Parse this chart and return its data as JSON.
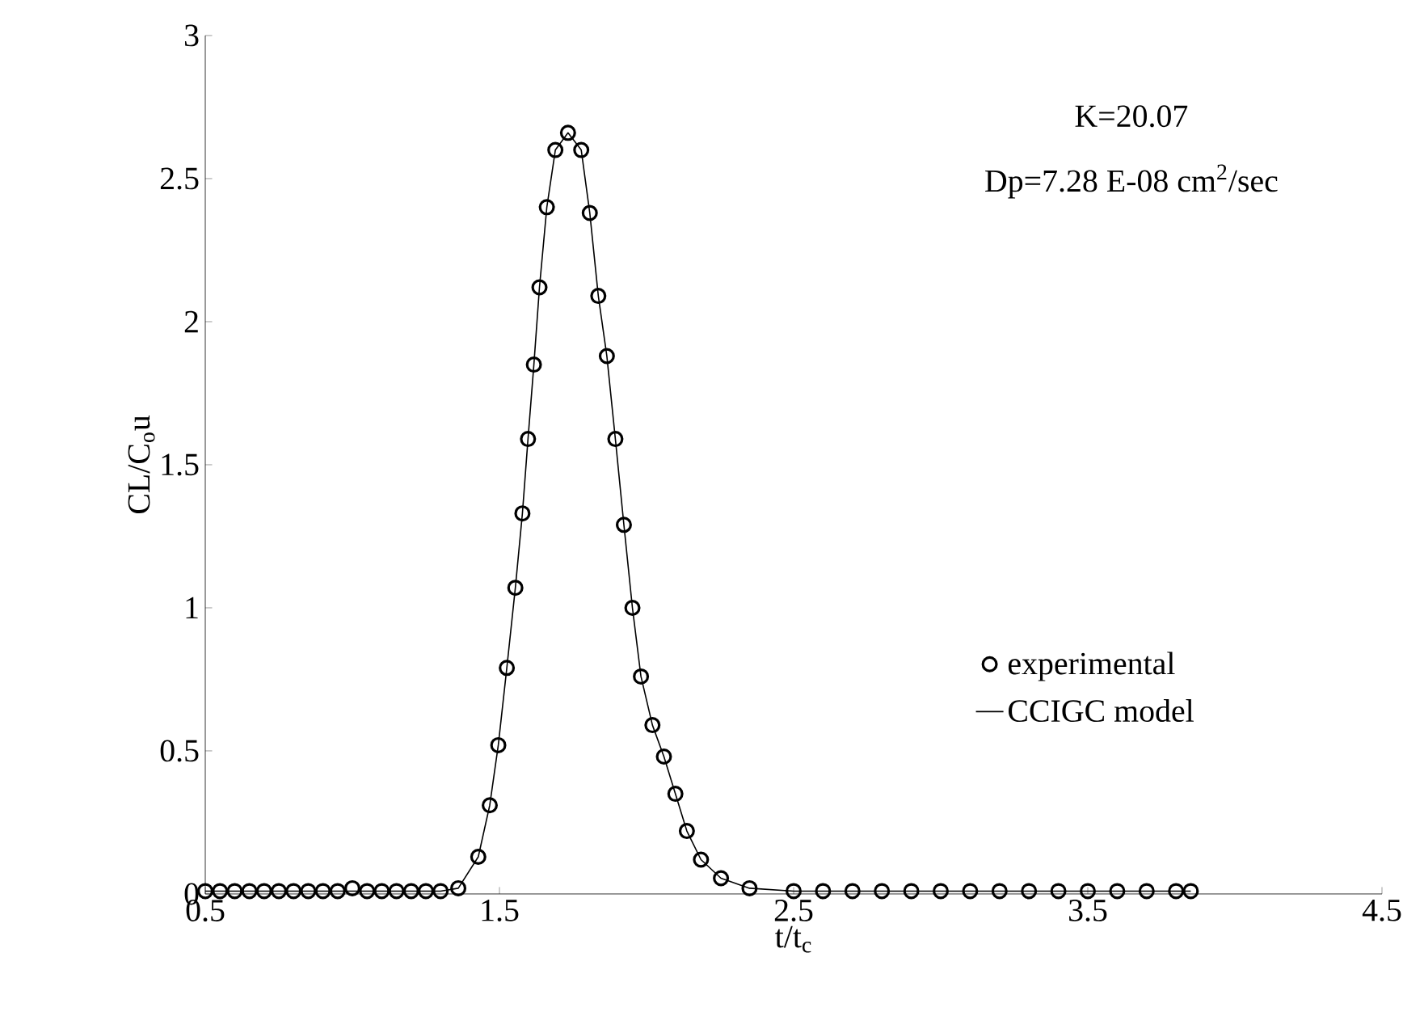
{
  "chart_data": {
    "type": "scatter",
    "xlabel": "t/t$_{c}$",
    "ylabel": "CL/C$_{o}$u",
    "annotations": [
      "K=20.07",
      "Dp=7.28 E-08 cm$^{2}$/sec"
    ],
    "xlim": [
      0.5,
      4.5
    ],
    "xticks": [
      0.5,
      1.5,
      2.5,
      3.5,
      4.5
    ],
    "ylim": [
      0,
      3
    ],
    "yticks": [
      0,
      0.5,
      1,
      1.5,
      2,
      2.5,
      3
    ],
    "grid": false,
    "legend": "right",
    "series": [
      {
        "name": "experimental",
        "marker": "circle",
        "color": "#000000",
        "x": [
          0.5,
          0.55,
          0.6,
          0.65,
          0.7,
          0.75,
          0.8,
          0.85,
          0.9,
          0.95,
          1.0,
          1.05,
          1.1,
          1.15,
          1.2,
          1.25,
          1.3,
          1.36,
          1.428,
          1.467,
          1.496,
          1.525,
          1.554,
          1.578,
          1.597,
          1.617,
          1.636,
          1.661,
          1.69,
          1.733,
          1.778,
          1.807,
          1.836,
          1.865,
          1.894,
          1.923,
          1.952,
          1.981,
          2.02,
          2.059,
          2.098,
          2.137,
          2.185,
          2.253,
          2.35,
          2.5,
          2.6,
          2.7,
          2.8,
          2.9,
          3.0,
          3.1,
          3.2,
          3.3,
          3.4,
          3.5,
          3.6,
          3.7,
          3.8,
          3.85
        ],
        "values": [
          0.01,
          0.01,
          0.01,
          0.01,
          0.01,
          0.01,
          0.01,
          0.01,
          0.01,
          0.01,
          0.02,
          0.01,
          0.01,
          0.01,
          0.01,
          0.01,
          0.01,
          0.02,
          0.13,
          0.31,
          0.52,
          0.79,
          1.07,
          1.33,
          1.59,
          1.85,
          2.12,
          2.4,
          2.6,
          2.66,
          2.6,
          2.38,
          2.09,
          1.88,
          1.59,
          1.29,
          1.0,
          0.76,
          0.59,
          0.48,
          0.35,
          0.22,
          0.12,
          0.055,
          0.02,
          0.01,
          0.01,
          0.01,
          0.01,
          0.01,
          0.01,
          0.01,
          0.01,
          0.01,
          0.01,
          0.01,
          0.01,
          0.01,
          0.01,
          0.01
        ]
      },
      {
        "name": "CCIGC model",
        "type": "line",
        "marker": "none",
        "line_style": "solid",
        "color": "#000000",
        "x": [
          0.5,
          1.3,
          1.36,
          1.428,
          1.467,
          1.496,
          1.525,
          1.554,
          1.578,
          1.597,
          1.617,
          1.636,
          1.661,
          1.69,
          1.733,
          1.778,
          1.807,
          1.836,
          1.865,
          1.894,
          1.923,
          1.952,
          1.981,
          2.02,
          2.059,
          2.098,
          2.137,
          2.185,
          2.253,
          2.35,
          2.5,
          3.85
        ],
        "values": [
          0.01,
          0.01,
          0.02,
          0.13,
          0.31,
          0.52,
          0.79,
          1.07,
          1.33,
          1.59,
          1.85,
          2.12,
          2.4,
          2.6,
          2.66,
          2.6,
          2.38,
          2.09,
          1.88,
          1.59,
          1.29,
          1.0,
          0.76,
          0.59,
          0.48,
          0.35,
          0.22,
          0.12,
          0.055,
          0.02,
          0.01,
          0.01
        ]
      }
    ]
  }
}
